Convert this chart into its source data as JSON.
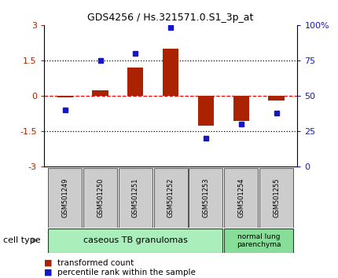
{
  "title": "GDS4256 / Hs.321571.0.S1_3p_at",
  "samples": [
    "GSM501249",
    "GSM501250",
    "GSM501251",
    "GSM501252",
    "GSM501253",
    "GSM501254",
    "GSM501255"
  ],
  "red_values": [
    -0.05,
    0.25,
    1.2,
    2.0,
    -1.25,
    -1.05,
    -0.2
  ],
  "blue_values": [
    40,
    75,
    80,
    98,
    20,
    30,
    38
  ],
  "ylim_left": [
    -3,
    3
  ],
  "ylim_right": [
    0,
    100
  ],
  "red_color": "#AA2200",
  "blue_color": "#1515CC",
  "bar_width": 0.45,
  "cell_types": [
    {
      "label": "caseous TB granulomas",
      "span": [
        0,
        4
      ],
      "color": "#AAEEBB"
    },
    {
      "label": "normal lung\nparenchyma",
      "span": [
        5,
        6
      ],
      "color": "#88DD99"
    }
  ],
  "legend_red": "transformed count",
  "legend_blue": "percentile rank within the sample",
  "cell_type_label": "cell type",
  "bg_color": "#FFFFFF",
  "sample_bg": "#CCCCCC",
  "title_fontsize": 9,
  "tick_fontsize": 8,
  "sample_fontsize": 6,
  "legend_fontsize": 7.5,
  "cell_type_fontsize": 8
}
